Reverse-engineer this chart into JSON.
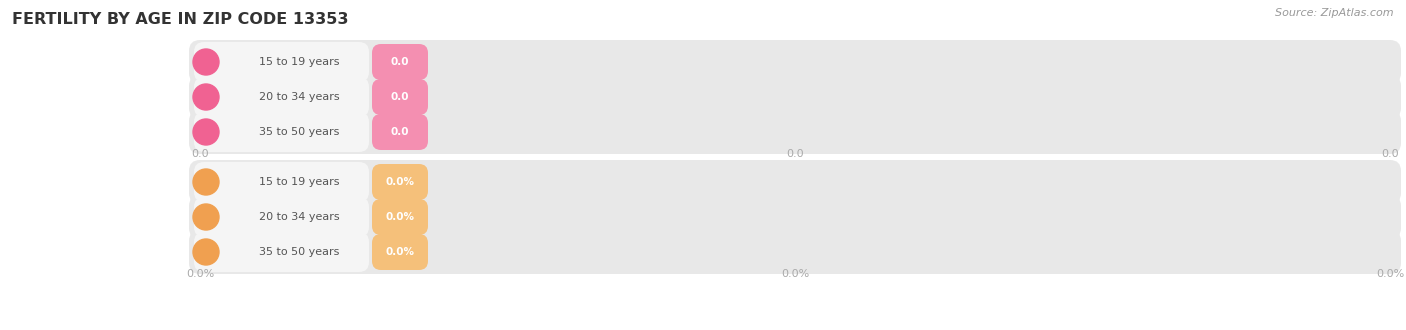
{
  "title": "FERTILITY BY AGE IN ZIP CODE 13353",
  "source": "Source: ZipAtlas.com",
  "top_section": {
    "categories": [
      "15 to 19 years",
      "20 to 34 years",
      "35 to 50 years"
    ],
    "values": [
      0.0,
      0.0,
      0.0
    ],
    "badge_color": "#f48fb1",
    "ball_color": "#f06292",
    "value_labels": [
      "0.0",
      "0.0",
      "0.0"
    ],
    "xtick_labels": [
      "0.0",
      "0.0",
      "0.0"
    ]
  },
  "bottom_section": {
    "categories": [
      "15 to 19 years",
      "20 to 34 years",
      "35 to 50 years"
    ],
    "values": [
      0.0,
      0.0,
      0.0
    ],
    "badge_color": "#f5c07a",
    "ball_color": "#f0a050",
    "value_labels": [
      "0.0%",
      "0.0%",
      "0.0%"
    ],
    "xtick_labels": [
      "0.0%",
      "0.0%",
      "0.0%"
    ]
  },
  "bg_color": "#ffffff",
  "track_bg": "#e8e8e8",
  "label_box_color": "#f5f5f5",
  "text_color": "#555555",
  "title_color": "#333333",
  "source_color": "#999999",
  "grid_color": "#cccccc",
  "tick_color": "#aaaaaa"
}
